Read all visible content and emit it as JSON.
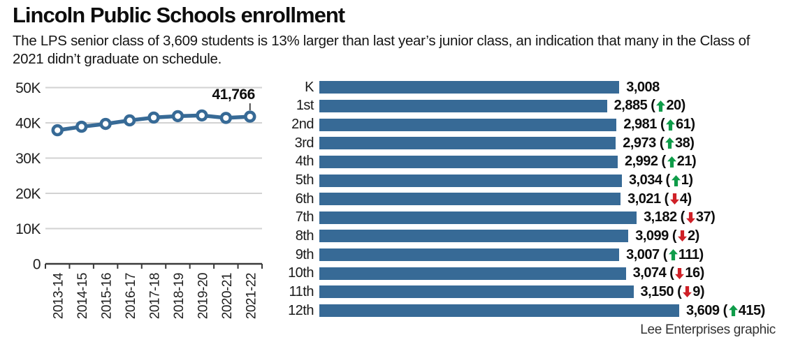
{
  "header": {
    "title": "Lincoln Public Schools enrollment",
    "subtitle": "The LPS senior class of 3,609 students is 13% larger than last year’s junior class, an indication that many in the Class of 2021 didn’t graduate on schedule."
  },
  "credit": "Lee Enterprises graphic",
  "colors": {
    "bar_blue": "#376a96",
    "line_blue": "#376a96",
    "up_green": "#0e9c49",
    "down_red": "#cf2027",
    "grid_gray": "#d2d2d2",
    "axis_dark": "#3a3a3a",
    "label_dark": "#1d1d1d"
  },
  "chart_data": [
    {
      "type": "line",
      "x": [
        "2013-14",
        "2014-15",
        "2015-16",
        "2016-17",
        "2017-18",
        "2018-19",
        "2019-20",
        "2020-21",
        "2021-22"
      ],
      "values": [
        37900,
        38900,
        39700,
        40700,
        41500,
        41900,
        42100,
        41400,
        41766
      ],
      "ylim": [
        0,
        50000
      ],
      "yticks": [
        {
          "label": "0",
          "value": 0
        },
        {
          "label": "10K",
          "value": 10000
        },
        {
          "label": "20K",
          "value": 20000
        },
        {
          "label": "30K",
          "value": 30000
        },
        {
          "label": "40K",
          "value": 40000
        },
        {
          "label": "50K",
          "value": 50000
        }
      ],
      "grid": true,
      "marker": "open-circle",
      "annotation": {
        "text": "41,766",
        "x_index": 8,
        "value": 41766
      }
    },
    {
      "type": "bar",
      "orientation": "horizontal",
      "xmax": 3609,
      "rows": [
        {
          "grade": "K",
          "value": 3008,
          "value_label": "3,008",
          "change": null,
          "change_label": null,
          "direction": null
        },
        {
          "grade": "1st",
          "value": 2885,
          "value_label": "2,885",
          "change": 20,
          "change_label": "20",
          "direction": "up"
        },
        {
          "grade": "2nd",
          "value": 2981,
          "value_label": "2,981",
          "change": 61,
          "change_label": "61",
          "direction": "up"
        },
        {
          "grade": "3rd",
          "value": 2973,
          "value_label": "2,973",
          "change": 38,
          "change_label": "38",
          "direction": "up"
        },
        {
          "grade": "4th",
          "value": 2992,
          "value_label": "2,992",
          "change": 21,
          "change_label": "21",
          "direction": "up"
        },
        {
          "grade": "5th",
          "value": 3034,
          "value_label": "3,034",
          "change": 1,
          "change_label": "1",
          "direction": "up"
        },
        {
          "grade": "6th",
          "value": 3021,
          "value_label": "3,021",
          "change": -4,
          "change_label": "4",
          "direction": "down"
        },
        {
          "grade": "7th",
          "value": 3182,
          "value_label": "3,182",
          "change": -37,
          "change_label": "37",
          "direction": "down"
        },
        {
          "grade": "8th",
          "value": 3099,
          "value_label": "3,099",
          "change": -2,
          "change_label": "2",
          "direction": "down"
        },
        {
          "grade": "9th",
          "value": 3007,
          "value_label": "3,007",
          "change": 111,
          "change_label": "111",
          "direction": "up"
        },
        {
          "grade": "10th",
          "value": 3074,
          "value_label": "3,074",
          "change": -16,
          "change_label": "16",
          "direction": "down"
        },
        {
          "grade": "11th",
          "value": 3150,
          "value_label": "3,150",
          "change": -9,
          "change_label": "9",
          "direction": "down"
        },
        {
          "grade": "12th",
          "value": 3609,
          "value_label": "3,609",
          "change": 415,
          "change_label": "415",
          "direction": "up"
        }
      ]
    }
  ]
}
